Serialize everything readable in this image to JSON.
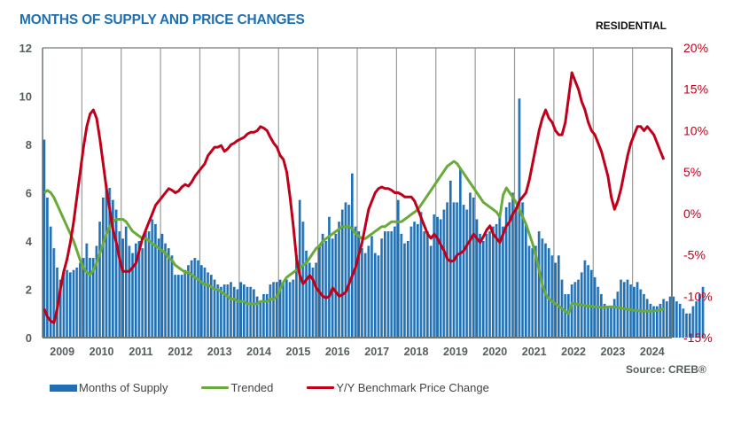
{
  "header": {
    "title": "MONTHS OF SUPPLY AND PRICE CHANGES",
    "subtitle": "RESIDENTIAL",
    "source": "Source: CREB®"
  },
  "colors": {
    "title": "#1f6fb2",
    "bars": "#1f6fb2",
    "bars_highlight": "#8fc1e8",
    "trended": "#6aaa3a",
    "price_change": "#c0001a",
    "grid": "#999999",
    "axis_left": "#555f5f",
    "axis_right": "#c0001a"
  },
  "chart_data": {
    "type": "bar+line",
    "title": "MONTHS OF SUPPLY AND PRICE CHANGES",
    "subtitle": "RESIDENTIAL",
    "x": {
      "start": "2009-01",
      "frequency": "monthly",
      "tick_labels": [
        "2009",
        "2010",
        "2011",
        "2012",
        "2013",
        "2014",
        "2015",
        "2016",
        "2017",
        "2018",
        "2019",
        "2020",
        "2021",
        "2022",
        "2023",
        "2024"
      ]
    },
    "y_left": {
      "range": [
        0,
        12
      ],
      "ticks": [
        "0",
        "2",
        "4",
        "6",
        "8",
        "10",
        "12"
      ]
    },
    "y_right": {
      "range": [
        -15,
        20
      ],
      "ticks": [
        "-15%",
        "-10%",
        "-5%",
        "0%",
        "5%",
        "10%",
        "15%",
        "20%"
      ]
    },
    "grid": "vertical at year boundaries",
    "legend_position": "bottom",
    "series": [
      {
        "name": "Months of Supply",
        "type": "bar",
        "axis": "left",
        "values": [
          8.2,
          5.8,
          4.6,
          3.7,
          2.9,
          2.4,
          2.8,
          2.8,
          2.7,
          2.8,
          2.9,
          3.1,
          3.3,
          3.9,
          3.3,
          3.3,
          3.8,
          4.8,
          5.8,
          6.3,
          6.2,
          5.7,
          5.3,
          4.4,
          4.1,
          4.6,
          3.8,
          3.5,
          3.9,
          4.0,
          3.7,
          4.4,
          4.4,
          4.9,
          4.7,
          4.1,
          4.3,
          3.9,
          3.7,
          3.4,
          2.6,
          2.6,
          2.6,
          2.8,
          3.0,
          3.2,
          3.3,
          3.2,
          3.0,
          2.9,
          2.7,
          2.6,
          2.4,
          2.2,
          2.1,
          2.2,
          2.2,
          2.3,
          2.1,
          2.0,
          2.3,
          2.2,
          2.1,
          2.1,
          2.0,
          1.7,
          1.5,
          1.8,
          1.8,
          2.2,
          2.3,
          2.3,
          2.4,
          2.3,
          2.4,
          2.3,
          2.4,
          3.4,
          5.7,
          4.8,
          3.6,
          3.1,
          2.9,
          3.1,
          3.8,
          4.3,
          4.0,
          5.0,
          4.1,
          4.3,
          4.8,
          5.3,
          5.6,
          5.5,
          6.8,
          4.6,
          4.4,
          3.7,
          3.5,
          3.8,
          4.2,
          3.5,
          3.4,
          4.1,
          4.4,
          4.4,
          4.4,
          4.6,
          5.7,
          4.3,
          3.9,
          4.0,
          4.6,
          4.8,
          4.7,
          5.2,
          4.4,
          4.4,
          3.8,
          5.1,
          5.0,
          4.9,
          5.3,
          5.6,
          6.5,
          5.6,
          5.6,
          7.0,
          5.5,
          5.3,
          6.0,
          5.8,
          4.9,
          4.3,
          4.0,
          4.3,
          4.4,
          4.6,
          4.7,
          5.1,
          4.6,
          5.4,
          5.6,
          6.0,
          5.4,
          9.9,
          5.6,
          4.7,
          3.8,
          3.7,
          3.8,
          4.4,
          4.1,
          3.9,
          3.7,
          3.4,
          3.1,
          3.4,
          2.4,
          1.8,
          1.8,
          2.2,
          2.3,
          2.4,
          2.7,
          3.2,
          3.0,
          2.8,
          2.5,
          2.1,
          1.8,
          1.4,
          1.3,
          1.3,
          1.6,
          1.9,
          2.4,
          2.3,
          2.4,
          2.2,
          2.1,
          2.3,
          2.0,
          1.8,
          1.6,
          1.4,
          1.3,
          1.3,
          1.4,
          1.6,
          1.5,
          1.7,
          1.7,
          1.5,
          1.4,
          1.2,
          1.0,
          1.0,
          1.3,
          1.5,
          1.8,
          2.1
        ],
        "highlight_note": "first month of each year shaded light blue"
      },
      {
        "name": "Trended",
        "type": "line",
        "axis": "left",
        "values": [
          6.0,
          6.1,
          6.0,
          5.8,
          5.5,
          5.2,
          4.9,
          4.6,
          4.3,
          4.0,
          3.6,
          3.2,
          2.9,
          2.7,
          2.6,
          2.8,
          3.1,
          3.5,
          3.9,
          4.3,
          4.6,
          4.8,
          4.9,
          4.9,
          4.9,
          4.8,
          4.6,
          4.4,
          4.3,
          4.2,
          4.1,
          4.1,
          4.0,
          3.9,
          3.8,
          3.7,
          3.6,
          3.5,
          3.3,
          3.2,
          3.0,
          2.9,
          2.8,
          2.7,
          2.7,
          2.6,
          2.5,
          2.4,
          2.3,
          2.2,
          2.2,
          2.1,
          2.0,
          2.0,
          1.9,
          1.8,
          1.7,
          1.6,
          1.6,
          1.5,
          1.5,
          1.5,
          1.4,
          1.4,
          1.4,
          1.4,
          1.5,
          1.5,
          1.5,
          1.6,
          1.6,
          1.7,
          2.0,
          2.3,
          2.5,
          2.6,
          2.7,
          2.8,
          2.9,
          3.0,
          3.1,
          3.3,
          3.5,
          3.7,
          3.8,
          4.0,
          4.1,
          4.2,
          4.3,
          4.4,
          4.5,
          4.6,
          4.6,
          4.6,
          4.5,
          4.3,
          4.2,
          4.1,
          4.1,
          4.2,
          4.3,
          4.4,
          4.5,
          4.6,
          4.6,
          4.7,
          4.8,
          4.8,
          4.8,
          4.8,
          4.9,
          5.0,
          5.1,
          5.2,
          5.3,
          5.5,
          5.7,
          5.9,
          6.1,
          6.3,
          6.5,
          6.7,
          6.9,
          7.1,
          7.2,
          7.3,
          7.2,
          7.0,
          6.8,
          6.6,
          6.4,
          6.2,
          6.0,
          5.8,
          5.6,
          5.5,
          5.4,
          5.3,
          5.2,
          5.0,
          5.9,
          6.2,
          6.0,
          5.8,
          5.6,
          5.3,
          5.0,
          4.7,
          4.3,
          3.9,
          3.4,
          2.8,
          2.2,
          1.8,
          1.6,
          1.5,
          1.4,
          1.3,
          1.2,
          1.1,
          1.0,
          0.9,
          0.8,
          0.7,
          0.6,
          0.5,
          0.4,
          0.4,
          0.3,
          0.3,
          0.2,
          0.2,
          0.3,
          0.3,
          0.3,
          0.2,
          0.1,
          0.0,
          -0.1,
          -0.2,
          -0.3,
          -0.3,
          -0.4,
          -0.4,
          -0.4,
          -0.4,
          -0.4,
          -0.3,
          -0.2,
          0.0
        ],
        "display_note": "values approximate; line drawn in months-of-supply units"
      },
      {
        "name": "Y/Y Benchmark Price Change",
        "type": "line",
        "axis": "right",
        "unit": "%",
        "values": [
          -11.5,
          -12.5,
          -13.0,
          -13.2,
          -11.5,
          -9.0,
          -7.0,
          -5.5,
          -3.5,
          -1.0,
          2.0,
          5.0,
          8.0,
          10.5,
          12.0,
          12.5,
          11.5,
          9.0,
          6.0,
          3.0,
          0.5,
          -2.0,
          -3.5,
          -5.5,
          -7.0,
          -7.0,
          -7.0,
          -6.5,
          -6.0,
          -4.5,
          -3.0,
          -2.0,
          -1.0,
          0.0,
          1.0,
          1.5,
          2.0,
          2.5,
          3.0,
          2.8,
          2.5,
          2.7,
          3.2,
          3.5,
          3.3,
          3.8,
          4.5,
          5.0,
          5.5,
          6.0,
          7.0,
          7.5,
          8.0,
          8.0,
          8.2,
          7.5,
          7.8,
          8.3,
          8.5,
          8.8,
          9.0,
          9.2,
          9.6,
          9.8,
          9.8,
          10.0,
          10.5,
          10.3,
          10.0,
          9.2,
          8.5,
          8.0,
          7.0,
          6.5,
          5.0,
          2.0,
          -1.5,
          -5.5,
          -7.5,
          -8.5,
          -8.0,
          -7.5,
          -8.0,
          -9.0,
          -9.5,
          -10.0,
          -10.2,
          -10.0,
          -9.0,
          -9.5,
          -10.0,
          -9.8,
          -9.5,
          -8.5,
          -7.5,
          -6.5,
          -5.0,
          -3.5,
          -1.5,
          0.5,
          1.5,
          2.5,
          3.0,
          3.2,
          3.0,
          3.0,
          2.8,
          2.5,
          2.5,
          2.3,
          2.0,
          2.0,
          2.0,
          1.5,
          0.5,
          -0.5,
          -1.5,
          -2.5,
          -3.0,
          -2.5,
          -3.0,
          -3.8,
          -4.5,
          -5.5,
          -5.8,
          -5.7,
          -5.0,
          -4.8,
          -4.5,
          -3.8,
          -3.2,
          -2.5,
          -3.0,
          -3.5,
          -2.8,
          -2.0,
          -1.5,
          -2.5,
          -3.0,
          -3.5,
          -2.5,
          -1.5,
          -1.0,
          0.0,
          0.5,
          1.5,
          2.0,
          2.5,
          4.0,
          6.0,
          8.0,
          10.0,
          11.5,
          12.5,
          11.5,
          11.0,
          10.0,
          9.5,
          9.5,
          11.0,
          14.0,
          17.0,
          16.0,
          15.0,
          13.5,
          12.5,
          11.0,
          10.0,
          9.5,
          8.5,
          7.5,
          6.0,
          4.5,
          2.0,
          0.5,
          1.5,
          3.0,
          5.0,
          7.0,
          8.5,
          9.5,
          10.5,
          10.5,
          10.0,
          10.5,
          10.0,
          9.5,
          8.5,
          7.5,
          6.5
        ]
      }
    ],
    "annotations": [
      "Source: CREB®"
    ]
  },
  "legend": [
    {
      "label": "Months of Supply",
      "kind": "bar",
      "color": "#1f6fb2"
    },
    {
      "label": "Trended",
      "kind": "line",
      "color": "#6aaa3a"
    },
    {
      "label": "Y/Y Benchmark Price Change",
      "kind": "line",
      "color": "#c0001a"
    }
  ]
}
